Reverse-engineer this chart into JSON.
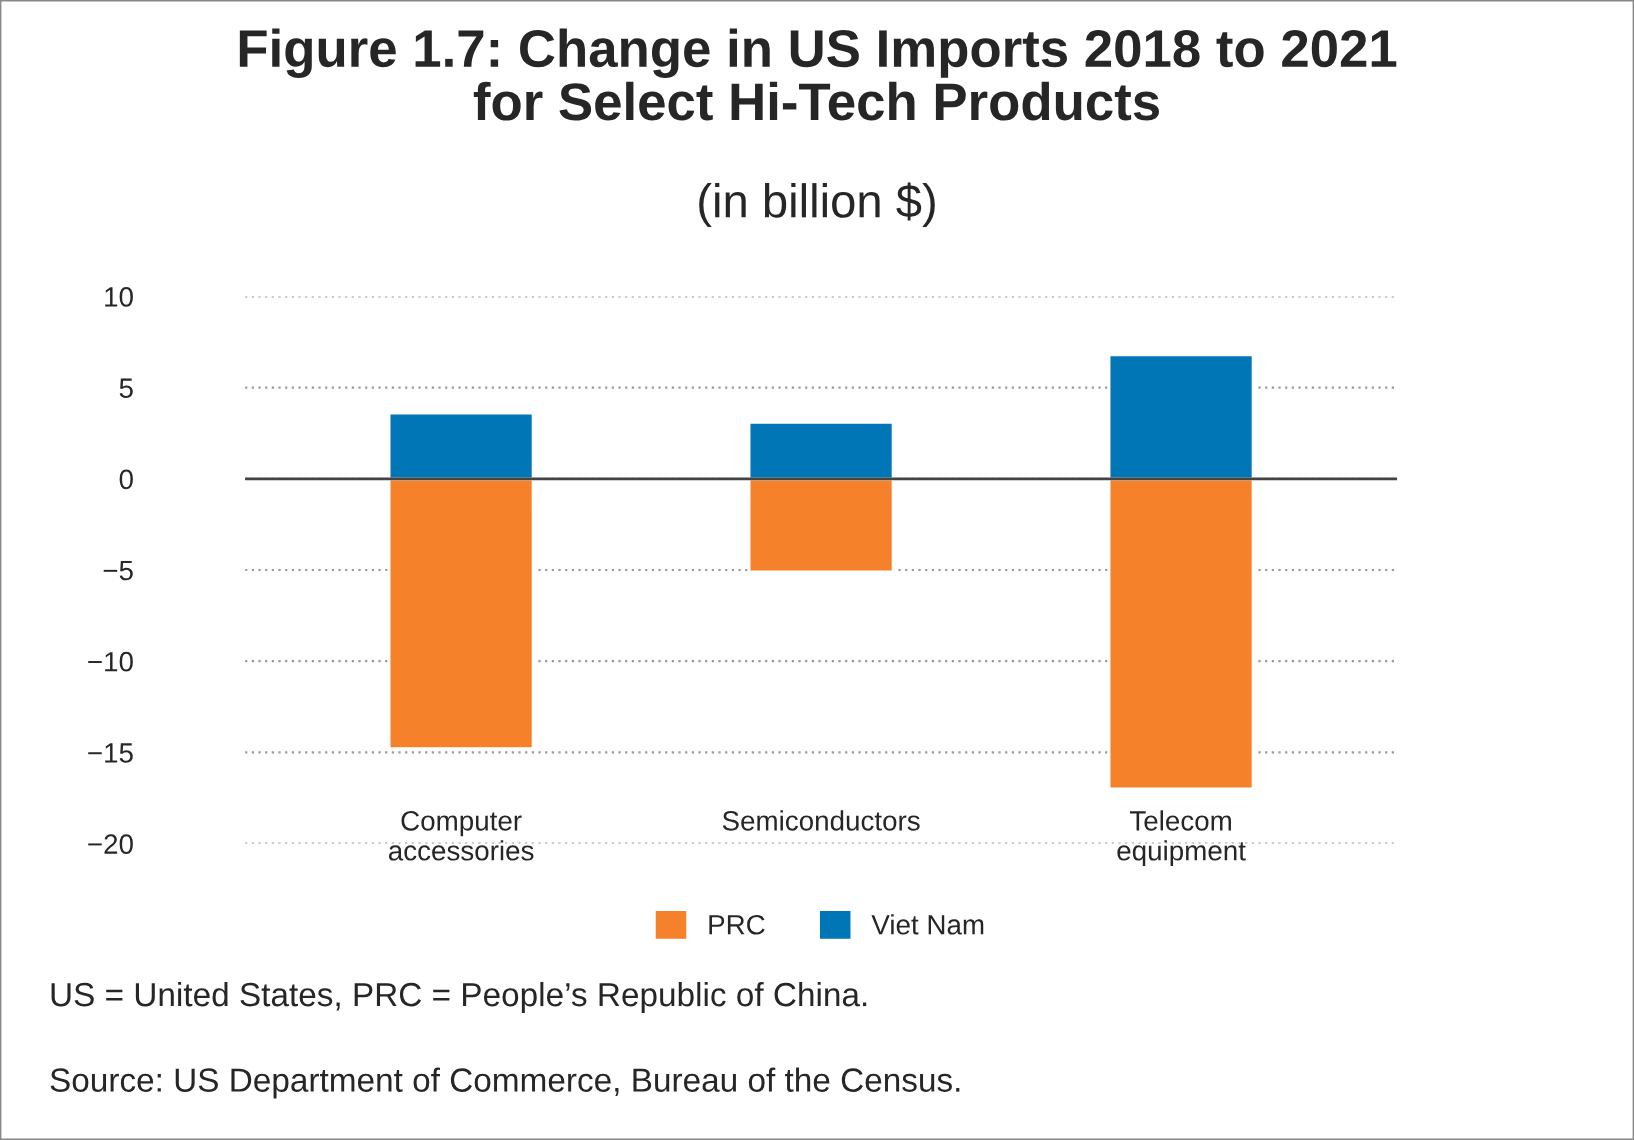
{
  "chart_data": {
    "type": "bar",
    "title": "Figure 1.7: Change in US Imports 2018 to 2021\nfor Select Hi-Tech Products",
    "subtitle": "(in billion $)",
    "categories": [
      "Computer\naccessories",
      "Semiconductors",
      "Telecom\nequipment"
    ],
    "series": [
      {
        "name": "PRC",
        "color": "#f5822a",
        "values": [
          -14.8,
          -5.1,
          -17.0
        ]
      },
      {
        "name": "Viet Nam",
        "color": "#0076b6",
        "values": [
          3.6,
          3.1,
          6.8
        ]
      }
    ],
    "stacked": true,
    "ylim": [
      -20,
      10
    ],
    "yticks": [
      {
        "value": -20,
        "label": "−20"
      },
      {
        "value": -15,
        "label": "−15"
      },
      {
        "value": -10,
        "label": "−10"
      },
      {
        "value": -5,
        "label": "−5"
      },
      0,
      5,
      10
    ],
    "grid": "y",
    "legend": "bottom",
    "annotations": [
      "US = United States, PRC = People’s Republic of China.",
      "Source: US Department of Commerce, Bureau of the Census."
    ]
  }
}
